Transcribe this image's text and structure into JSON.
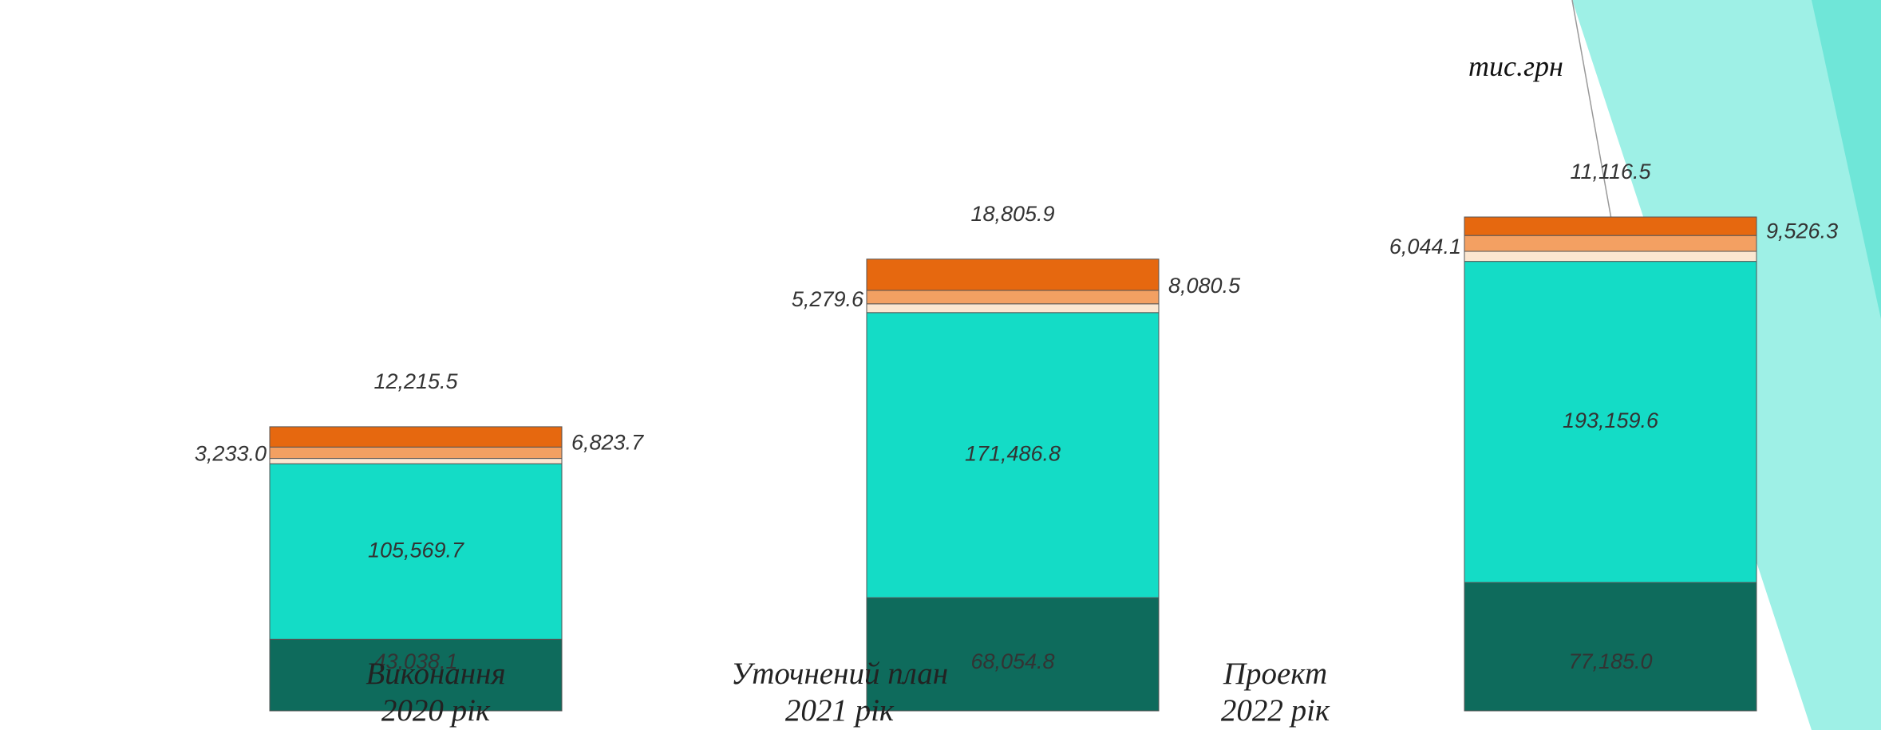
{
  "chart_data": {
    "type": "stacked-bar",
    "unit": "тис.грн",
    "categories": [
      "Виконання\n2020 рік",
      "Уточнений план\n2021 рік",
      "Проект\n2022 рік"
    ],
    "series": [
      {
        "color": "#0e6b5c",
        "values": [
          43038.1,
          68054.8,
          77185.0
        ],
        "value_labels": [
          "43,038.1",
          "68,054.8",
          "77,185.0"
        ]
      },
      {
        "color": "#14dcc6",
        "values": [
          105569.7,
          171486.8,
          193159.6
        ],
        "value_labels": [
          "105,569.7",
          "171,486.8",
          "193,159.6"
        ]
      },
      {
        "color": "#fbe6d0",
        "values": [
          3233.0,
          5279.6,
          6044.1
        ],
        "value_labels": [
          "3,233.0",
          "5,279.6",
          "6,044.1"
        ]
      },
      {
        "color": "#f3a062",
        "values": [
          6823.7,
          8080.5,
          9526.3
        ],
        "value_labels": [
          "6,823.7",
          "8,080.5",
          "9,526.3"
        ]
      },
      {
        "color": "#e6680f",
        "values": [
          12215.5,
          18805.9,
          11116.5
        ],
        "value_labels": [
          "12,215.5",
          "18,805.9",
          "11,116.5"
        ]
      }
    ]
  }
}
